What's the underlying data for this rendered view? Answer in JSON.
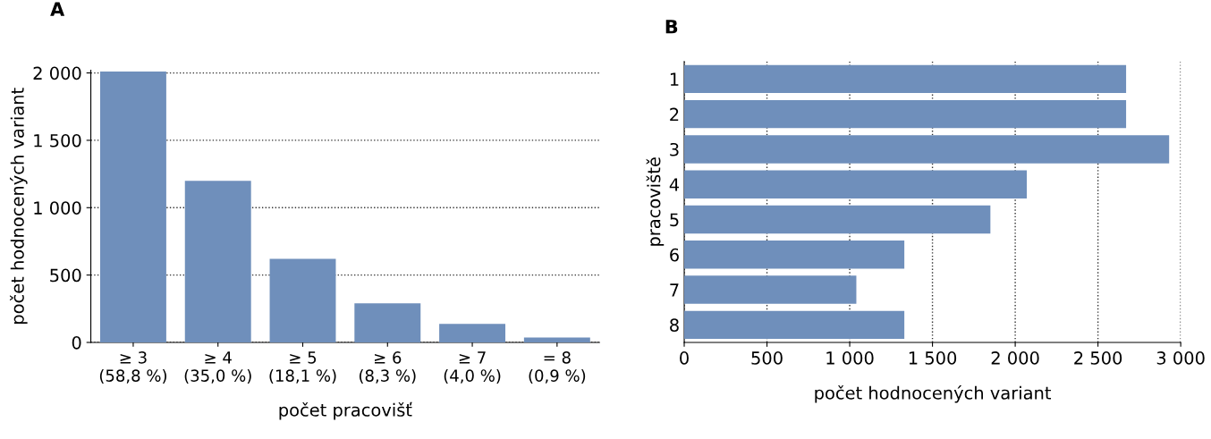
{
  "chart_data": [
    {
      "type": "bar",
      "title": "A",
      "xlabel": "počet pracovišť",
      "ylabel": "počet hodnocených variant",
      "categories": [
        "≥ 3\n(58,8 %)",
        "≥ 4\n(35,0 %)",
        "≥ 5\n(18,1 %)",
        "≥ 6\n(8,3 %)",
        "≥ 7\n(4,0 %)",
        "= 8\n(0,9 %)"
      ],
      "values": [
        2010,
        1200,
        620,
        290,
        137,
        36
      ],
      "color": "#6f8fbb",
      "ylim": [
        0,
        2020
      ],
      "yticks": [
        0,
        500,
        {
          "value": 1000,
          "label": "1 000"
        },
        {
          "value": 1500,
          "label": "1 500"
        },
        {
          "value": 2000,
          "label": "2 000"
        }
      ],
      "grid": "y"
    },
    {
      "type": "bar",
      "title": "B",
      "orientation": "horizontal",
      "xlabel": "počet hodnocených variant",
      "ylabel": "pracoviště",
      "categories": [
        "1",
        "2",
        "3",
        "4",
        "5",
        "6",
        "7",
        "8"
      ],
      "values": [
        2670,
        2670,
        2930,
        2070,
        1850,
        1330,
        1040,
        1330
      ],
      "color": "#6f8fbb",
      "xlim": [
        0,
        3000
      ],
      "xticks": [
        0,
        500,
        {
          "value": 1000,
          "label": "1 000"
        },
        {
          "value": 1500,
          "label": "1 500"
        },
        {
          "value": 2000,
          "label": "2 000"
        },
        {
          "value": 2500,
          "label": "2 500"
        },
        {
          "value": 3000,
          "label": "3 000"
        }
      ],
      "grid": "x"
    }
  ]
}
